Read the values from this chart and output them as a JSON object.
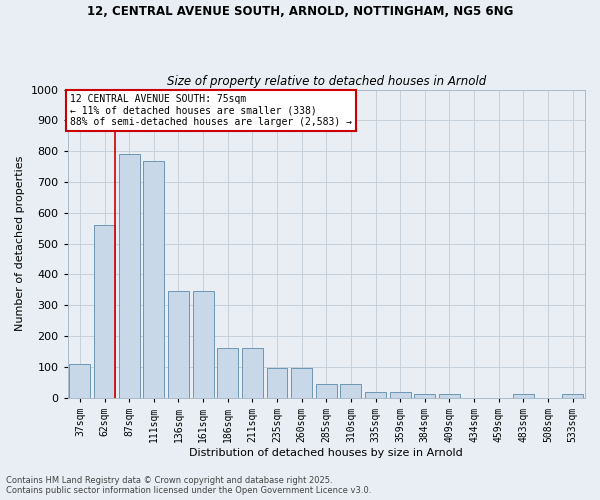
{
  "title_line1": "12, CENTRAL AVENUE SOUTH, ARNOLD, NOTTINGHAM, NG5 6NG",
  "title_line2": "Size of property relative to detached houses in Arnold",
  "xlabel": "Distribution of detached houses by size in Arnold",
  "ylabel": "Number of detached properties",
  "categories": [
    "37sqm",
    "62sqm",
    "87sqm",
    "111sqm",
    "136sqm",
    "161sqm",
    "186sqm",
    "211sqm",
    "235sqm",
    "260sqm",
    "285sqm",
    "310sqm",
    "335sqm",
    "359sqm",
    "384sqm",
    "409sqm",
    "434sqm",
    "459sqm",
    "483sqm",
    "508sqm",
    "533sqm"
  ],
  "values": [
    110,
    560,
    790,
    770,
    345,
    345,
    160,
    160,
    95,
    95,
    45,
    45,
    20,
    18,
    12,
    12,
    0,
    0,
    12,
    0,
    12
  ],
  "bar_color": "#c8d8e8",
  "bar_edge_color": "#5c8aaa",
  "grid_color": "#c0ccd8",
  "background_color": "#e8eef4",
  "vline_color": "#cc0000",
  "vline_x": 1.425,
  "annotation_text": "12 CENTRAL AVENUE SOUTH: 75sqm\n← 11% of detached houses are smaller (338)\n88% of semi-detached houses are larger (2,583) →",
  "annotation_box_color": "#ffffff",
  "annotation_box_edge": "#cc0000",
  "ylim": [
    0,
    1000
  ],
  "yticks": [
    0,
    100,
    200,
    300,
    400,
    500,
    600,
    700,
    800,
    900,
    1000
  ],
  "footer_line1": "Contains HM Land Registry data © Crown copyright and database right 2025.",
  "footer_line2": "Contains public sector information licensed under the Open Government Licence v3.0."
}
